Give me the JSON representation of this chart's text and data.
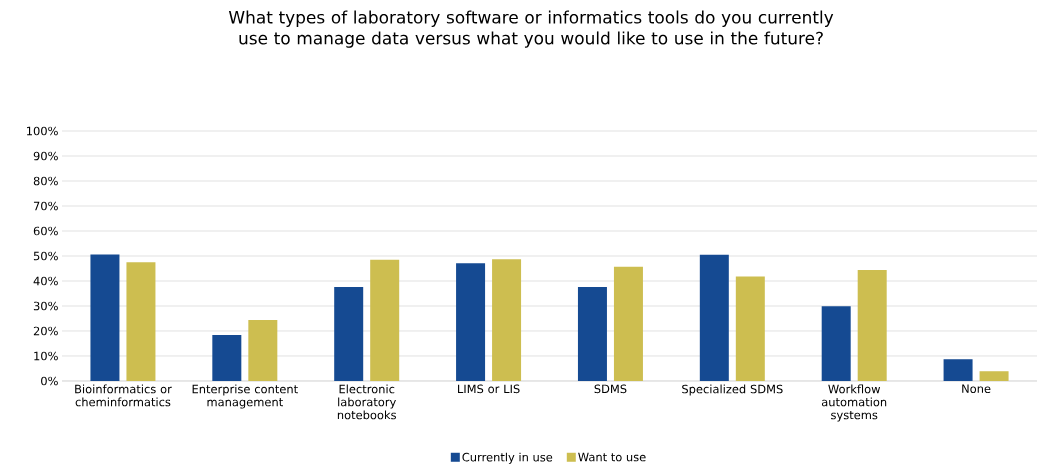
{
  "chart_data": {
    "type": "bar",
    "title": "What types of laboratory software or informatics tools do you currently use to manage data versus what you would like to use in the future?",
    "categories": [
      "Bioinformatics or cheminformatics",
      "Enterprise content management",
      "Electronic laboratory notebooks",
      "LIMS or LIS",
      "SDMS",
      "Specialized SDMS",
      "Workflow automation systems",
      "None"
    ],
    "series": [
      {
        "name": "Currently in use",
        "color": "#154a92",
        "values": [
          50.6,
          18.4,
          37.6,
          47.1,
          37.6,
          50.5,
          29.9,
          8.7
        ]
      },
      {
        "name": "Want to use",
        "color": "#cdbe50",
        "values": [
          47.5,
          24.4,
          48.5,
          48.7,
          45.7,
          41.8,
          44.4,
          3.9
        ]
      }
    ],
    "ylim": [
      0,
      100
    ],
    "yticks": [
      {
        "value": 0,
        "label": "0%"
      },
      {
        "value": 10,
        "label": "10%"
      },
      {
        "value": 20,
        "label": "20%"
      },
      {
        "value": 30,
        "label": "30%"
      },
      {
        "value": 40,
        "label": "40%"
      },
      {
        "value": 50,
        "label": "50%"
      },
      {
        "value": 60,
        "label": "60%"
      },
      {
        "value": 70,
        "label": "70%"
      },
      {
        "value": 80,
        "label": "80%"
      },
      {
        "value": 90,
        "label": "90%"
      },
      {
        "value": 100,
        "label": "100%"
      }
    ],
    "grid": "y",
    "legend": "bottom"
  }
}
